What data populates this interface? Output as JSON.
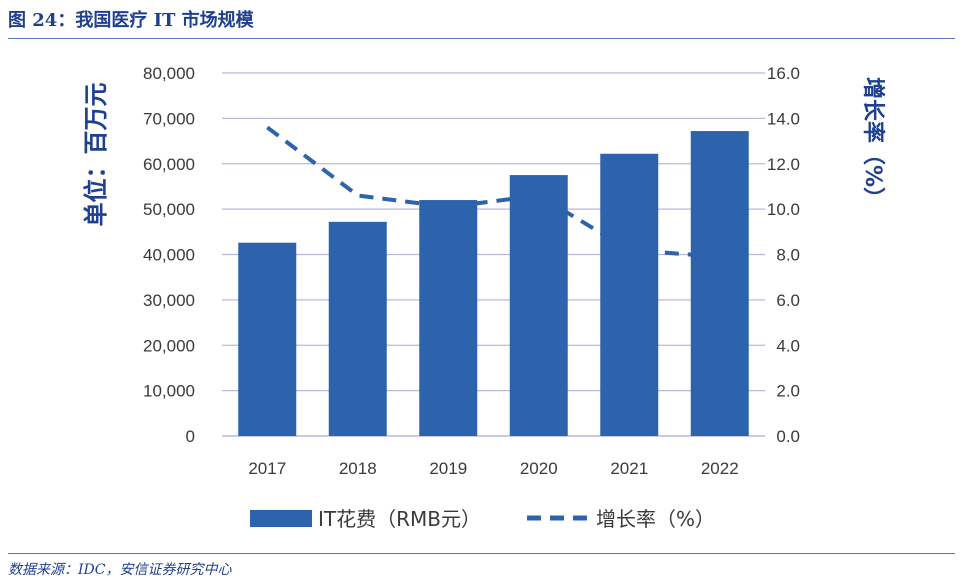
{
  "figure": {
    "title": "图 24：我国医疗 IT 市场规模",
    "source": "数据来源：IDC，安信证券研究中心"
  },
  "chart_data": {
    "type": "bar",
    "categories": [
      "2017",
      "2018",
      "2019",
      "2020",
      "2021",
      "2022"
    ],
    "series": [
      {
        "name": "IT花费（RMB元）",
        "kind": "bar",
        "axis": "left",
        "color": "#2d62ad",
        "values": [
          42600,
          47200,
          52000,
          57500,
          62200,
          67200
        ]
      },
      {
        "name": "增长率（%）",
        "kind": "line",
        "style": "dashed",
        "axis": "right",
        "color": "#2d62ad",
        "values": [
          13.6,
          10.6,
          10.1,
          10.6,
          8.2,
          7.9
        ]
      }
    ],
    "ylabel_left": "单位：百万元",
    "ylabel_right": "增长率（%）",
    "ylim_left": [
      0,
      80000
    ],
    "ylim_right": [
      0,
      16
    ],
    "yticks_left": [
      "0",
      "10,000",
      "20,000",
      "30,000",
      "40,000",
      "50,000",
      "60,000",
      "70,000",
      "80,000"
    ],
    "yticks_right": [
      "0.0",
      "2.0",
      "4.0",
      "6.0",
      "8.0",
      "10.0",
      "12.0",
      "14.0",
      "16.0"
    ],
    "grid": true,
    "legend_position": "bottom",
    "colors": {
      "bar": "#2d62ad",
      "grid": "#b8b8dc",
      "axis_text": "#3a3a3a",
      "label_text": "#1f3f8f"
    }
  }
}
